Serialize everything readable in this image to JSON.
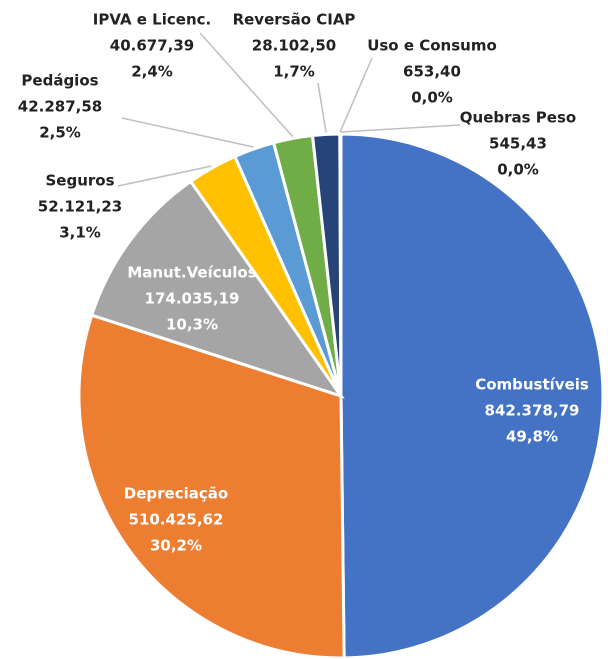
{
  "chart_data": {
    "type": "pie",
    "categories": [
      "Combustíveis",
      "Depreciação",
      "Manut.Veículos",
      "Seguros",
      "Pedágios",
      "IPVA e Licenc.",
      "Reversão CIAP",
      "Uso e Consumo",
      "Quebras Peso"
    ],
    "values": [
      842378.79,
      510425.62,
      174035.19,
      52121.23,
      42287.58,
      40677.39,
      28102.5,
      653.4,
      545.43
    ],
    "value_labels": [
      "842.378,79",
      "510.425,62",
      "174.035,19",
      "52.121,23",
      "42.287,58",
      "40.677,39",
      "28.102,50",
      "653,40",
      "545,43"
    ],
    "percents": [
      49.8,
      30.2,
      10.3,
      3.1,
      2.5,
      2.4,
      1.7,
      0.0,
      0.0
    ],
    "percent_labels": [
      "49,8%",
      "30,2%",
      "10,3%",
      "3,1%",
      "2,5%",
      "2,4%",
      "1,7%",
      "0,0%",
      "0,0%"
    ],
    "colors": [
      "#4472c4",
      "#ed7d31",
      "#a5a5a5",
      "#ffc000",
      "#5b9bd5",
      "#70ad47",
      "#264478",
      "#9e480e",
      "#636363"
    ]
  }
}
